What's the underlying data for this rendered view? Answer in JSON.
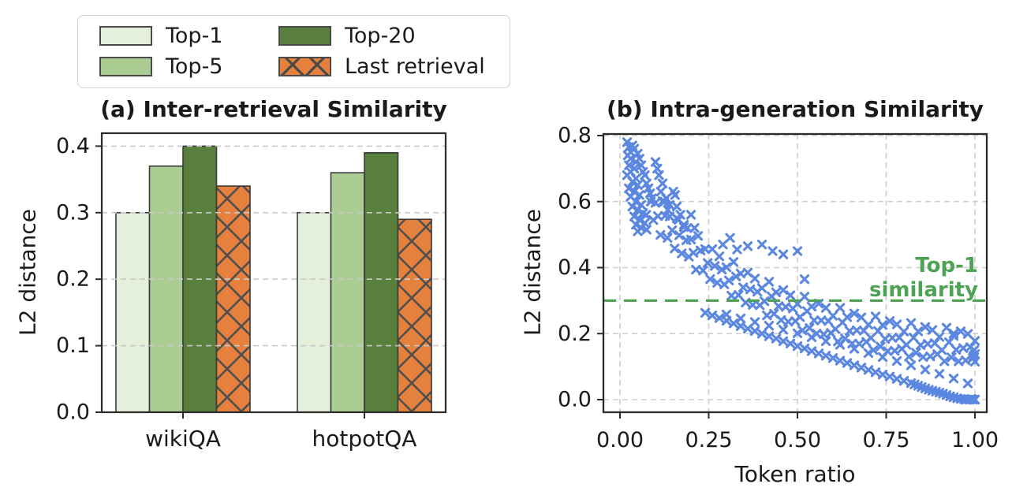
{
  "figure": {
    "background": "#ffffff"
  },
  "colors": {
    "top1": "#e4efdc",
    "top5": "#abcc92",
    "top20": "#587f3c",
    "last": "#e5813c",
    "bar_edge": "#3a3a3a",
    "hatch": "#4f4f4f",
    "grid": "#c9c9c9",
    "spine": "#2b2b2b",
    "scatter_marker": "#5b87e0",
    "reference_green": "#4da353",
    "text": "#1a1a1a"
  },
  "legend": {
    "items": [
      {
        "label": "Top-1",
        "color": "#e4efdc",
        "hatch": false
      },
      {
        "label": "Top-5",
        "color": "#abcc92",
        "hatch": false
      },
      {
        "label": "Top-20",
        "color": "#587f3c",
        "hatch": false
      },
      {
        "label": "Last retrieval",
        "color": "#e5813c",
        "hatch": true
      }
    ]
  },
  "chart_data": [
    {
      "type": "bar",
      "title": "(a) Inter-retrieval Similarity",
      "xlabel": "",
      "ylabel": "L2 distance",
      "categories": [
        "wikiQA",
        "hotpotQA"
      ],
      "series": [
        {
          "name": "Top-1",
          "color": "#e4efdc",
          "hatch": false,
          "values": [
            0.3,
            0.3
          ]
        },
        {
          "name": "Top-5",
          "color": "#abcc92",
          "hatch": false,
          "values": [
            0.37,
            0.36
          ]
        },
        {
          "name": "Top-20",
          "color": "#587f3c",
          "hatch": false,
          "values": [
            0.4,
            0.39
          ]
        },
        {
          "name": "Last retrieval",
          "color": "#e5813c",
          "hatch": true,
          "values": [
            0.34,
            0.29
          ]
        }
      ],
      "ylim": [
        0,
        0.42
      ],
      "yticks": [
        0.0,
        0.1,
        0.2,
        0.3,
        0.4
      ],
      "ytick_labels": [
        "0.0",
        "0.1",
        "0.2",
        "0.3",
        "0.4"
      ],
      "grid": "horizontal-dashed",
      "legend_position": "above"
    },
    {
      "type": "scatter",
      "title": "(b) Intra-generation Similarity",
      "xlabel": "Token ratio",
      "ylabel": "L2 distance",
      "xlim": [
        -0.047,
        1.033
      ],
      "ylim": [
        -0.038,
        0.805
      ],
      "xticks": [
        0.0,
        0.25,
        0.5,
        0.75,
        1.0
      ],
      "xtick_labels": [
        "0.00",
        "0.25",
        "0.50",
        "0.75",
        "1.00"
      ],
      "yticks": [
        0.0,
        0.2,
        0.4,
        0.6,
        0.8
      ],
      "ytick_labels": [
        "0.0",
        "0.2",
        "0.4",
        "0.6",
        "0.8"
      ],
      "grid": "both-dashed",
      "marker": "x",
      "marker_color": "#5b87e0",
      "reference_line": {
        "y": 0.3,
        "style": "dashed",
        "color": "#4da353",
        "label": "Top-1 similarity",
        "label_lines": [
          "Top-1",
          "similarity"
        ]
      },
      "points": [
        [
          0.02,
          0.78
        ],
        [
          0.025,
          0.765
        ],
        [
          0.03,
          0.75
        ],
        [
          0.022,
          0.74
        ],
        [
          0.035,
          0.77
        ],
        [
          0.04,
          0.76
        ],
        [
          0.03,
          0.73
        ],
        [
          0.045,
          0.72
        ],
        [
          0.025,
          0.71
        ],
        [
          0.05,
          0.745
        ],
        [
          0.04,
          0.7
        ],
        [
          0.03,
          0.69
        ],
        [
          0.055,
          0.73
        ],
        [
          0.02,
          0.68
        ],
        [
          0.045,
          0.67
        ],
        [
          0.06,
          0.71
        ],
        [
          0.035,
          0.66
        ],
        [
          0.05,
          0.65
        ],
        [
          0.025,
          0.64
        ],
        [
          0.065,
          0.69
        ],
        [
          0.04,
          0.63
        ],
        [
          0.055,
          0.62
        ],
        [
          0.03,
          0.615
        ],
        [
          0.07,
          0.68
        ],
        [
          0.045,
          0.6
        ],
        [
          0.06,
          0.59
        ],
        [
          0.035,
          0.585
        ],
        [
          0.075,
          0.655
        ],
        [
          0.05,
          0.575
        ],
        [
          0.065,
          0.565
        ],
        [
          0.04,
          0.555
        ],
        [
          0.08,
          0.64
        ],
        [
          0.055,
          0.545
        ],
        [
          0.07,
          0.535
        ],
        [
          0.045,
          0.53
        ],
        [
          0.085,
          0.625
        ],
        [
          0.06,
          0.52
        ],
        [
          0.075,
          0.515
        ],
        [
          0.05,
          0.51
        ],
        [
          0.09,
          0.61
        ],
        [
          0.1,
          0.72
        ],
        [
          0.105,
          0.7
        ],
        [
          0.11,
          0.68
        ],
        [
          0.12,
          0.655
        ],
        [
          0.115,
          0.63
        ],
        [
          0.13,
          0.61
        ],
        [
          0.125,
          0.6
        ],
        [
          0.14,
          0.59
        ],
        [
          0.135,
          0.575
        ],
        [
          0.15,
          0.63
        ],
        [
          0.155,
          0.62
        ],
        [
          0.16,
          0.585
        ],
        [
          0.17,
          0.56
        ],
        [
          0.165,
          0.545
        ],
        [
          0.18,
          0.53
        ],
        [
          0.19,
          0.52
        ],
        [
          0.2,
          0.56
        ],
        [
          0.21,
          0.52
        ],
        [
          0.29,
          0.47
        ],
        [
          0.31,
          0.49
        ],
        [
          0.33,
          0.455
        ],
        [
          0.36,
          0.465
        ],
        [
          0.4,
          0.47
        ],
        [
          0.43,
          0.45
        ],
        [
          0.46,
          0.44
        ],
        [
          0.5,
          0.45
        ],
        [
          0.52,
          0.365
        ],
        [
          0.94,
          0.2
        ],
        [
          0.08,
          0.64
        ],
        [
          0.087,
          0.6
        ],
        [
          0.074,
          0.56
        ],
        [
          0.1,
          0.596
        ],
        [
          0.107,
          0.556
        ],
        [
          0.094,
          0.544
        ],
        [
          0.12,
          0.601
        ],
        [
          0.127,
          0.557
        ],
        [
          0.114,
          0.499
        ],
        [
          0.14,
          0.555
        ],
        [
          0.147,
          0.513
        ],
        [
          0.134,
          0.49
        ],
        [
          0.16,
          0.549
        ],
        [
          0.167,
          0.498
        ],
        [
          0.154,
          0.458
        ],
        [
          0.18,
          0.523
        ],
        [
          0.187,
          0.483
        ],
        [
          0.174,
          0.443
        ],
        [
          0.2,
          0.485
        ],
        [
          0.207,
          0.445
        ],
        [
          0.194,
          0.433
        ],
        [
          0.22,
          0.496
        ],
        [
          0.227,
          0.452
        ],
        [
          0.214,
          0.394
        ],
        [
          0.24,
          0.456
        ],
        [
          0.247,
          0.414
        ],
        [
          0.234,
          0.391
        ],
        [
          0.26,
          0.456
        ],
        [
          0.267,
          0.405
        ],
        [
          0.254,
          0.365
        ],
        [
          0.28,
          0.434
        ],
        [
          0.287,
          0.394
        ],
        [
          0.274,
          0.354
        ],
        [
          0.3,
          0.401
        ],
        [
          0.307,
          0.361
        ],
        [
          0.294,
          0.349
        ],
        [
          0.32,
          0.417
        ],
        [
          0.327,
          0.373
        ],
        [
          0.314,
          0.315
        ],
        [
          0.34,
          0.382
        ],
        [
          0.347,
          0.34
        ],
        [
          0.334,
          0.317
        ],
        [
          0.36,
          0.385
        ],
        [
          0.367,
          0.334
        ],
        [
          0.354,
          0.294
        ],
        [
          0.38,
          0.367
        ],
        [
          0.387,
          0.327
        ],
        [
          0.374,
          0.287
        ],
        [
          0.4,
          0.338
        ],
        [
          0.407,
          0.298
        ],
        [
          0.394,
          0.286
        ],
        [
          0.42,
          0.357
        ],
        [
          0.427,
          0.313
        ],
        [
          0.414,
          0.255
        ],
        [
          0.44,
          0.325
        ],
        [
          0.447,
          0.283
        ],
        [
          0.434,
          0.26
        ],
        [
          0.46,
          0.332
        ],
        [
          0.467,
          0.281
        ],
        [
          0.454,
          0.241
        ],
        [
          0.48,
          0.316
        ],
        [
          0.487,
          0.276
        ],
        [
          0.474,
          0.236
        ],
        [
          0.5,
          0.29
        ],
        [
          0.507,
          0.25
        ],
        [
          0.494,
          0.238
        ],
        [
          0.52,
          0.312
        ],
        [
          0.527,
          0.268
        ],
        [
          0.514,
          0.21
        ],
        [
          0.54,
          0.282
        ],
        [
          0.547,
          0.24
        ],
        [
          0.534,
          0.217
        ],
        [
          0.56,
          0.291
        ],
        [
          0.567,
          0.24
        ],
        [
          0.554,
          0.2
        ],
        [
          0.58,
          0.278
        ],
        [
          0.587,
          0.238
        ],
        [
          0.574,
          0.198
        ],
        [
          0.6,
          0.254
        ],
        [
          0.607,
          0.214
        ],
        [
          0.594,
          0.202
        ],
        [
          0.62,
          0.278
        ],
        [
          0.627,
          0.234
        ],
        [
          0.614,
          0.176
        ],
        [
          0.64,
          0.25
        ],
        [
          0.647,
          0.208
        ],
        [
          0.634,
          0.185
        ],
        [
          0.66,
          0.261
        ],
        [
          0.667,
          0.21
        ],
        [
          0.654,
          0.17
        ],
        [
          0.68,
          0.249
        ],
        [
          0.687,
          0.209
        ],
        [
          0.674,
          0.169
        ],
        [
          0.7,
          0.227
        ],
        [
          0.707,
          0.187
        ],
        [
          0.694,
          0.175
        ],
        [
          0.72,
          0.252
        ],
        [
          0.727,
          0.208
        ],
        [
          0.714,
          0.15
        ],
        [
          0.74,
          0.226
        ],
        [
          0.747,
          0.184
        ],
        [
          0.734,
          0.161
        ],
        [
          0.76,
          0.238
        ],
        [
          0.767,
          0.187
        ],
        [
          0.754,
          0.147
        ],
        [
          0.78,
          0.228
        ],
        [
          0.787,
          0.188
        ],
        [
          0.774,
          0.148
        ],
        [
          0.8,
          0.206
        ],
        [
          0.807,
          0.166
        ],
        [
          0.794,
          0.154
        ],
        [
          0.82,
          0.232
        ],
        [
          0.827,
          0.188
        ],
        [
          0.814,
          0.13
        ],
        [
          0.84,
          0.207
        ],
        [
          0.847,
          0.165
        ],
        [
          0.834,
          0.142
        ],
        [
          0.86,
          0.22
        ],
        [
          0.867,
          0.169
        ],
        [
          0.854,
          0.129
        ],
        [
          0.88,
          0.211
        ],
        [
          0.887,
          0.171
        ],
        [
          0.874,
          0.131
        ],
        [
          0.9,
          0.19
        ],
        [
          0.907,
          0.15
        ],
        [
          0.894,
          0.138
        ],
        [
          0.92,
          0.218
        ],
        [
          0.927,
          0.174
        ],
        [
          0.914,
          0.116
        ],
        [
          0.94,
          0.193
        ],
        [
          0.947,
          0.151
        ],
        [
          0.934,
          0.128
        ],
        [
          0.96,
          0.207
        ],
        [
          0.967,
          0.156
        ],
        [
          0.954,
          0.116
        ],
        [
          0.98,
          0.199
        ],
        [
          0.987,
          0.159
        ],
        [
          0.974,
          0.119
        ],
        [
          1.0,
          0.178
        ],
        [
          1.0,
          0.138
        ],
        [
          0.994,
          0.126
        ],
        [
          0.24,
          0.263
        ],
        [
          0.26,
          0.255
        ],
        [
          0.28,
          0.247
        ],
        [
          0.3,
          0.239
        ],
        [
          0.32,
          0.231
        ],
        [
          0.34,
          0.223
        ],
        [
          0.36,
          0.215
        ],
        [
          0.38,
          0.208
        ],
        [
          0.4,
          0.2
        ],
        [
          0.42,
          0.192
        ],
        [
          0.44,
          0.185
        ],
        [
          0.46,
          0.177
        ],
        [
          0.48,
          0.17
        ],
        [
          0.5,
          0.162
        ],
        [
          0.52,
          0.155
        ],
        [
          0.54,
          0.147
        ],
        [
          0.56,
          0.14
        ],
        [
          0.58,
          0.133
        ],
        [
          0.6,
          0.126
        ],
        [
          0.62,
          0.118
        ],
        [
          0.64,
          0.111
        ],
        [
          0.66,
          0.104
        ],
        [
          0.68,
          0.097
        ],
        [
          0.7,
          0.09
        ],
        [
          0.72,
          0.083
        ],
        [
          0.74,
          0.076
        ],
        [
          0.76,
          0.07
        ],
        [
          0.78,
          0.063
        ],
        [
          0.8,
          0.057
        ],
        [
          0.82,
          0.05
        ],
        [
          0.83,
          0.046
        ],
        [
          0.84,
          0.042
        ],
        [
          0.85,
          0.038
        ],
        [
          0.86,
          0.034
        ],
        [
          0.87,
          0.03
        ],
        [
          0.88,
          0.027
        ],
        [
          0.89,
          0.024
        ],
        [
          0.9,
          0.021
        ],
        [
          0.91,
          0.018
        ],
        [
          0.92,
          0.014
        ],
        [
          0.93,
          0.01
        ],
        [
          0.94,
          0.007
        ],
        [
          0.95,
          0.004
        ],
        [
          0.96,
          0.002
        ],
        [
          0.97,
          0.001
        ],
        [
          0.975,
          0.0
        ],
        [
          0.985,
          0.0
        ],
        [
          0.995,
          0.0
        ],
        [
          1.0,
          0.0
        ],
        [
          0.99,
          0.002
        ],
        [
          0.3,
          0.258
        ],
        [
          0.34,
          0.246
        ],
        [
          0.38,
          0.235
        ],
        [
          0.42,
          0.224
        ],
        [
          0.46,
          0.212
        ],
        [
          0.5,
          0.201
        ],
        [
          0.54,
          0.189
        ],
        [
          0.58,
          0.177
        ],
        [
          0.62,
          0.166
        ],
        [
          0.66,
          0.154
        ],
        [
          0.7,
          0.141
        ],
        [
          0.74,
          0.129
        ],
        [
          0.78,
          0.117
        ],
        [
          0.82,
          0.104
        ],
        [
          0.86,
          0.091
        ],
        [
          0.9,
          0.078
        ],
        [
          0.94,
          0.064
        ],
        [
          0.98,
          0.049
        ],
        [
          0.998,
          0.15
        ],
        [
          1.0,
          0.115
        ],
        [
          0.996,
          0.132
        ]
      ]
    }
  ]
}
